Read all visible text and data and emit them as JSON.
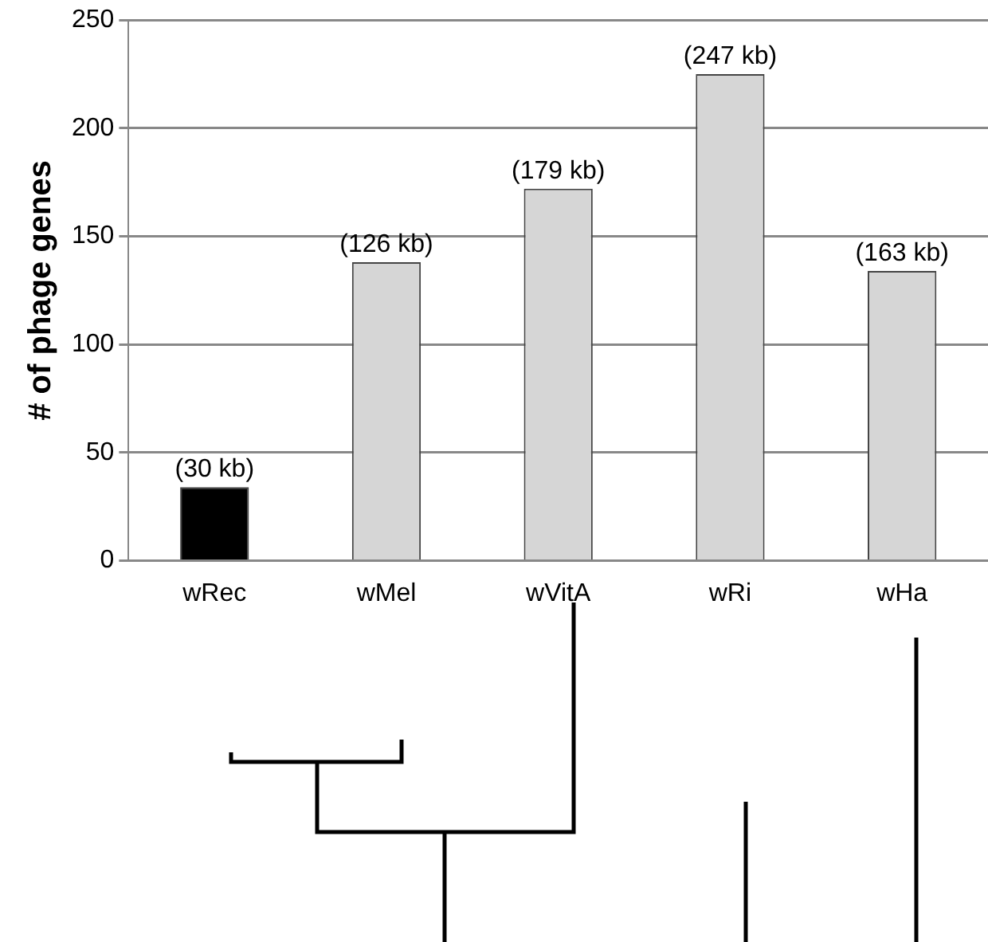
{
  "chart_data": {
    "type": "bar",
    "ylabel": "# of phage genes",
    "categories": [
      "wRec",
      "wMel",
      "wVitA",
      "wRi",
      "wHa"
    ],
    "values": [
      34,
      138,
      172,
      225,
      134
    ],
    "colors": [
      "#000000",
      "#d6d6d6",
      "#d6d6d6",
      "#d6d6d6",
      "#d6d6d6"
    ],
    "annotations": [
      {
        "text": "(30 kb)",
        "x": "wRec",
        "y": 34
      },
      {
        "text": "(126 kb)",
        "x": "wMel",
        "y": 138
      },
      {
        "text": "(179 kb)",
        "x": "wVitA",
        "y": 172
      },
      {
        "text": "(247 kb)",
        "x": "wRi",
        "y": 225
      },
      {
        "text": "(163 kb)",
        "x": "wHa",
        "y": 134
      }
    ],
    "ylim": [
      0,
      250
    ],
    "yticks": [
      0,
      50,
      100,
      150,
      200,
      250
    ],
    "grid": "y",
    "legend": false
  }
}
